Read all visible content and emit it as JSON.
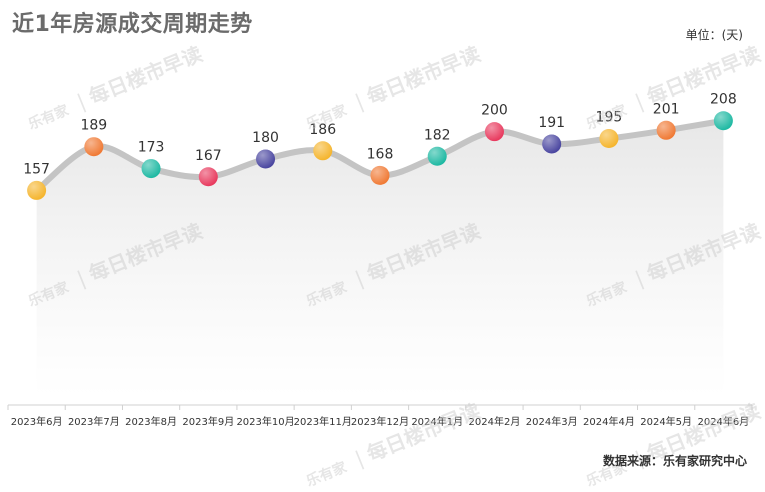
{
  "header": {
    "title": "近1年房源成交周期走势",
    "unit": "单位：(天)"
  },
  "footer": {
    "source": "数据来源：乐有家研究中心"
  },
  "watermark": {
    "logo": "乐有家",
    "text": "每日楼市早读"
  },
  "chart_data": {
    "type": "line",
    "categories": [
      "2023年6月",
      "2023年7月",
      "2023年8月",
      "2023年9月",
      "2023年10月",
      "2023年11月",
      "2023年12月",
      "2024年1月",
      "2024年2月",
      "2024年3月",
      "2024年4月",
      "2024年5月",
      "2024年6月"
    ],
    "values": [
      157,
      189,
      173,
      167,
      180,
      186,
      168,
      182,
      200,
      191,
      195,
      201,
      208
    ],
    "marker_colors": [
      "#f5b52e",
      "#f07a35",
      "#1fb9a3",
      "#e83a5e",
      "#4a46a0",
      "#f5b52e",
      "#f07a35",
      "#1fb9a3",
      "#e83a5e",
      "#4a46a0",
      "#f5b52e",
      "#f07a35",
      "#1fb9a3"
    ],
    "line_color": "#c4c4c4",
    "smooth": true,
    "area_fill": true,
    "grid": false,
    "legend": "none"
  }
}
